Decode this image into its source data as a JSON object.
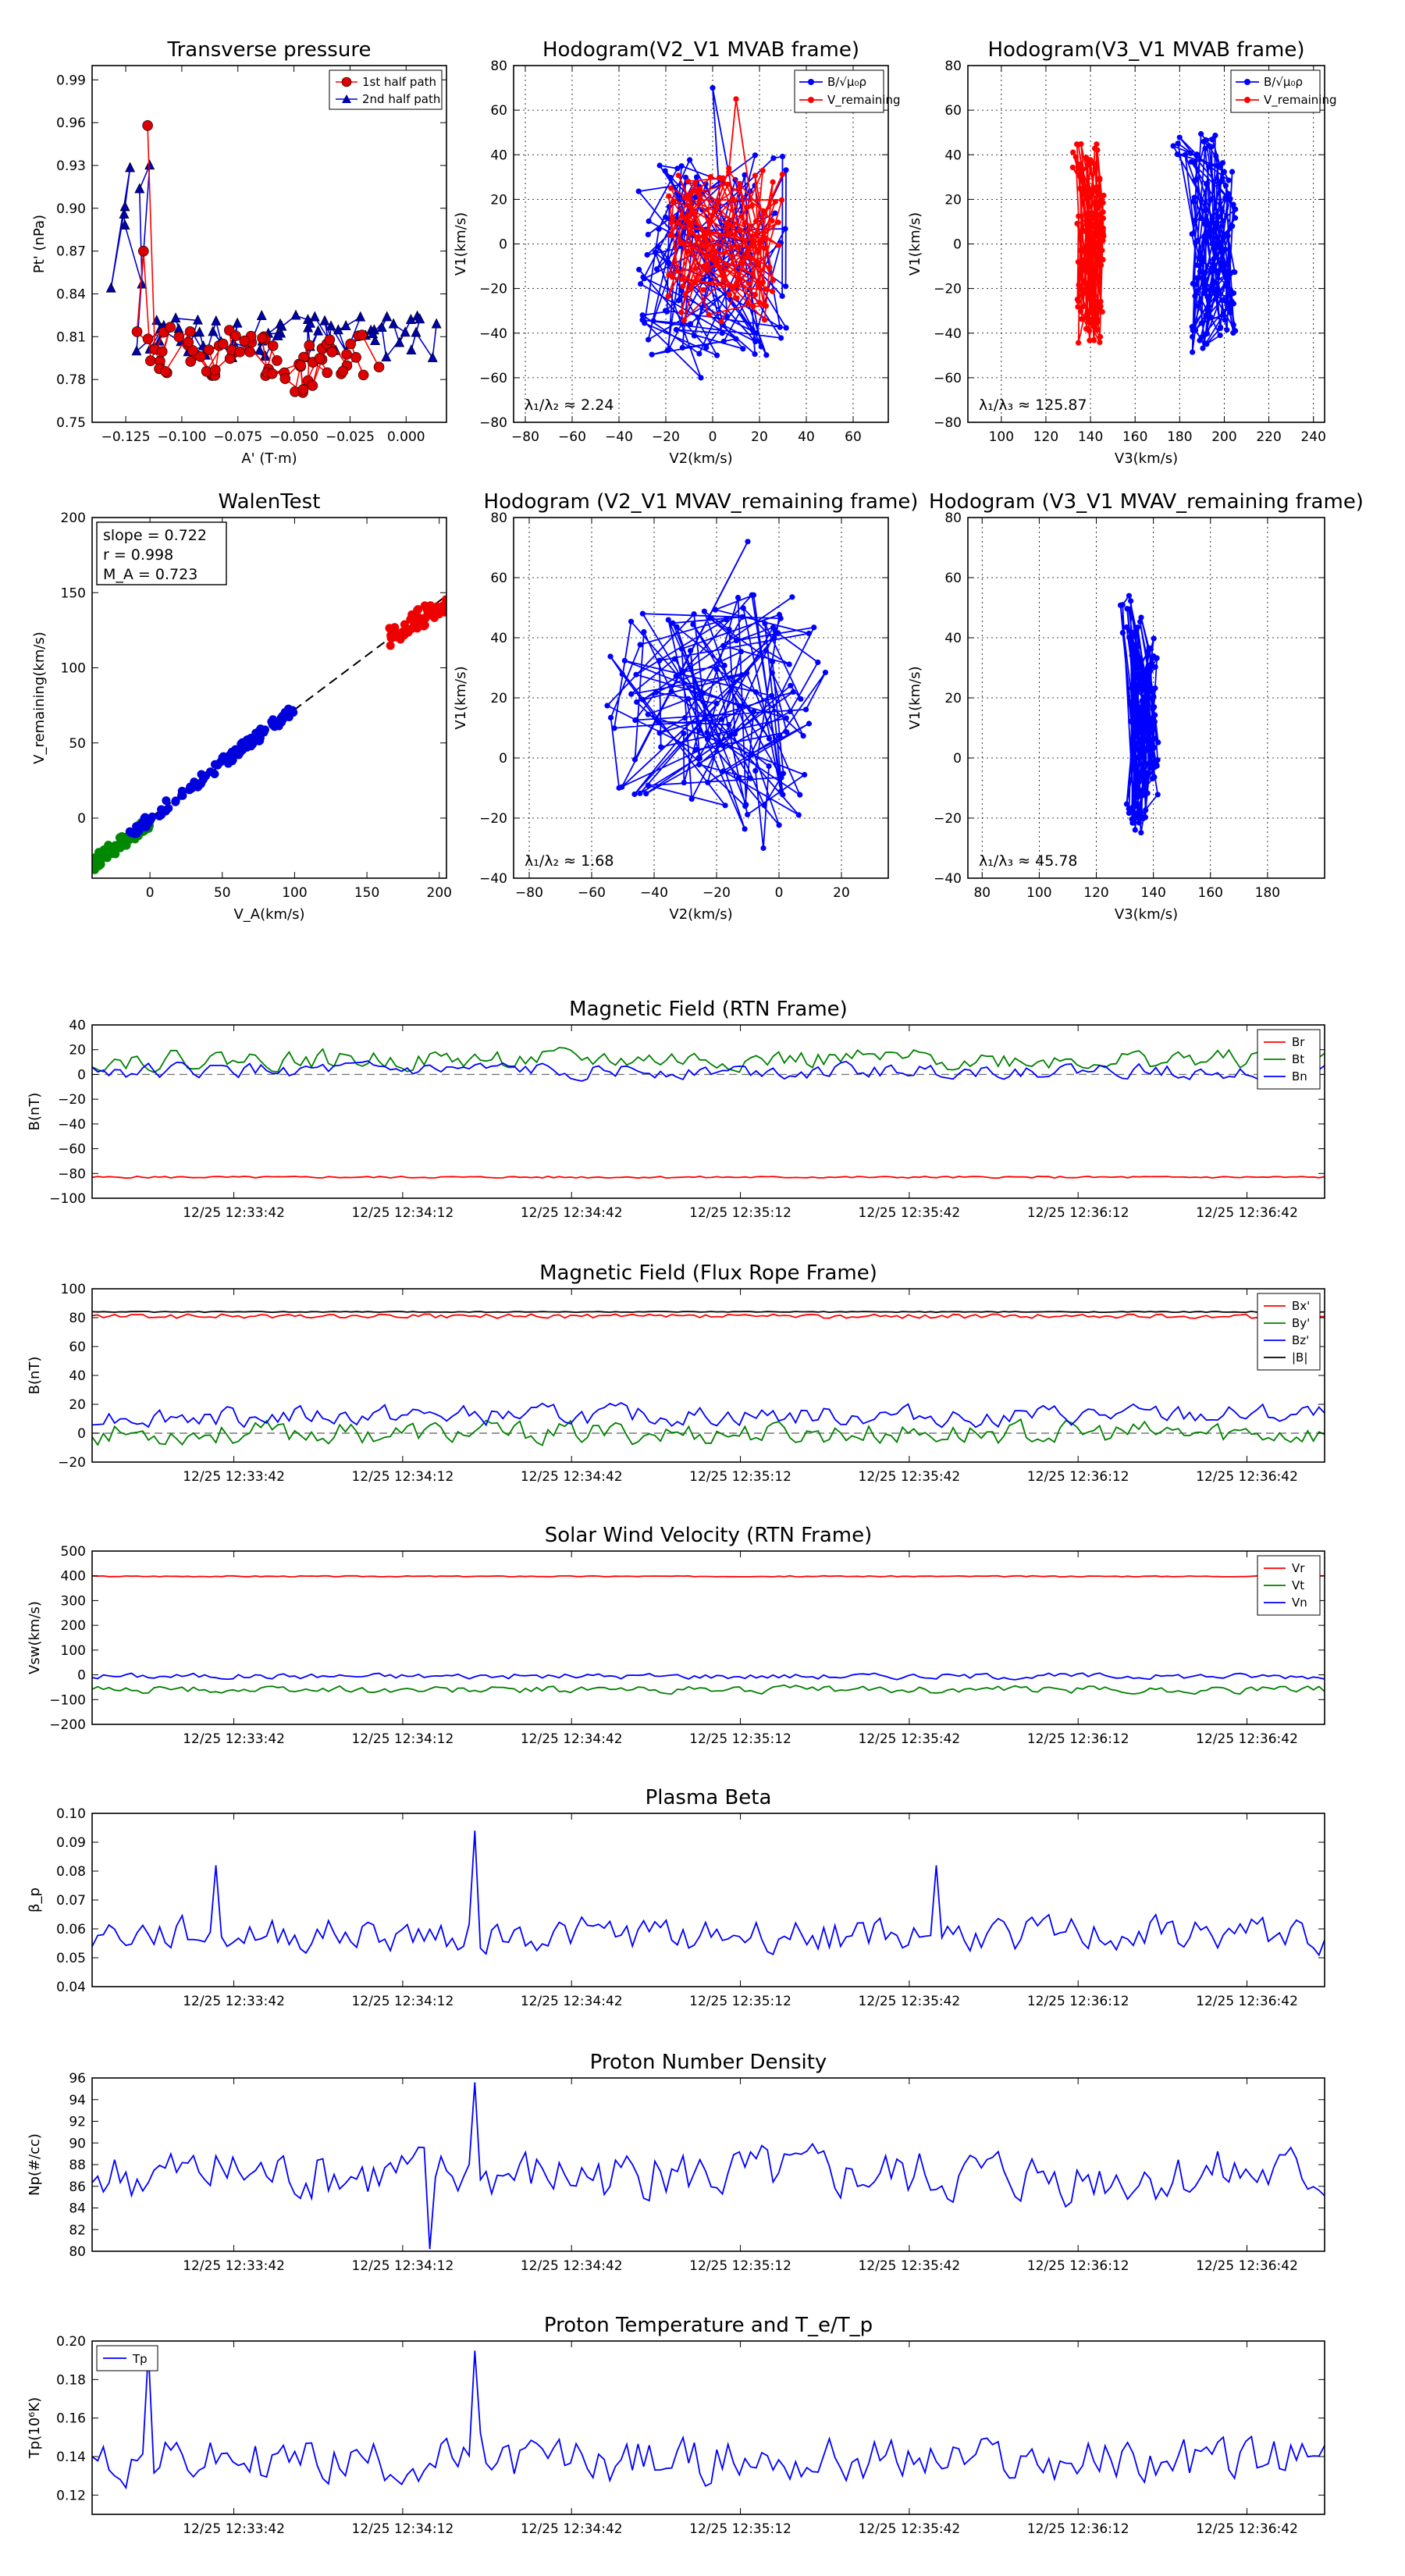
{
  "chart_data": {
    "top_panels": [
      {
        "id": "tp",
        "type": "scatter",
        "title": "Transverse pressure",
        "xlabel": "A' (T·m)",
        "ylabel": "Pt' (nPa)",
        "xlim": [
          -0.14,
          0.018
        ],
        "ylim": [
          0.75,
          1.0
        ],
        "xticks": [
          -0.125,
          -0.1,
          -0.075,
          -0.05,
          -0.025,
          0.0
        ],
        "xticklabels": [
          "−0.125",
          "−0.100",
          "−0.075",
          "−0.050",
          "−0.025",
          "0.000"
        ],
        "yticks": [
          0.75,
          0.78,
          0.81,
          0.84,
          0.87,
          0.9,
          0.93,
          0.96,
          0.99
        ],
        "yticklabels": [
          "0.75",
          "0.78",
          "0.81",
          "0.84",
          "0.87",
          "0.90",
          "0.93",
          "0.96",
          "0.99"
        ],
        "grid": false,
        "legend": [
          "1st half path",
          "2nd half path"
        ],
        "legend_loc": "top-right"
      },
      {
        "id": "h21",
        "type": "line",
        "title": "Hodogram(V2_V1 MVAB frame)",
        "xlabel": "V2(km/s)",
        "ylabel": "V1(km/s)",
        "xlim": [
          -85,
          75
        ],
        "ylim": [
          -80,
          80
        ],
        "xticks": [
          -80,
          -60,
          -40,
          -20,
          0,
          20,
          40,
          60
        ],
        "yticks": [
          -80,
          -60,
          -40,
          -20,
          0,
          20,
          40,
          60,
          80
        ],
        "grid": true,
        "legend": [
          "B/√μ₀ρ",
          "V_remaining"
        ],
        "legend_loc": "top-right",
        "annotation": "λ₁/λ₂ ≈ 2.24"
      },
      {
        "id": "h31",
        "type": "line",
        "title": "Hodogram(V3_V1 MVAB frame)",
        "xlabel": "V3(km/s)",
        "ylabel": "V1(km/s)",
        "xlim": [
          85,
          245
        ],
        "ylim": [
          -80,
          80
        ],
        "xticks": [
          100,
          120,
          140,
          160,
          180,
          200,
          220,
          240
        ],
        "yticks": [
          -80,
          -60,
          -40,
          -20,
          0,
          20,
          40,
          60,
          80
        ],
        "grid": true,
        "legend": [
          "B/√μ₀ρ",
          "V_remaining"
        ],
        "legend_loc": "top-right",
        "annotation": "λ₁/λ₃ ≈ 125.87"
      },
      {
        "id": "wt",
        "type": "scatter",
        "title": "WalenTest",
        "xlabel": "V_A(km/s)",
        "ylabel": "V_remaining(km/s)",
        "xlim": [
          -40,
          205
        ],
        "ylim": [
          -40,
          200
        ],
        "xticks": [
          0,
          50,
          100,
          150,
          200
        ],
        "yticks": [
          0,
          50,
          100,
          150,
          200
        ],
        "grid": false,
        "stats": [
          "slope = 0.722",
          "r = 0.998",
          "M_A = 0.723"
        ],
        "fit": {
          "slope": 0.722,
          "intercept": 0
        }
      },
      {
        "id": "hv21",
        "type": "line",
        "title": "Hodogram (V2_V1 MVAV_remaining frame)",
        "xlabel": "V2(km/s)",
        "ylabel": "V1(km/s)",
        "xlim": [
          -85,
          35
        ],
        "ylim": [
          -40,
          80
        ],
        "xticks": [
          -80,
          -60,
          -40,
          -20,
          0,
          20
        ],
        "yticks": [
          -40,
          -20,
          0,
          20,
          40,
          60,
          80
        ],
        "grid": true,
        "annotation": "λ₁/λ₂ ≈ 1.68"
      },
      {
        "id": "hv31",
        "type": "line",
        "title": "Hodogram (V3_V1 MVAV_remaining frame)",
        "xlabel": "V3(km/s)",
        "ylabel": "V1(km/s)",
        "xlim": [
          75,
          200
        ],
        "ylim": [
          -40,
          80
        ],
        "xticks": [
          80,
          100,
          120,
          140,
          160,
          180
        ],
        "yticks": [
          -40,
          -20,
          0,
          20,
          40,
          60,
          80
        ],
        "grid": true,
        "annotation": "λ₁/λ₃ ≈ 45.78"
      }
    ],
    "time_series": {
      "time_ticks": [
        "12/25 12:33:42",
        "12/25 12:34:12",
        "12/25 12:34:42",
        "12/25 12:35:12",
        "12/25 12:35:42",
        "12/25 12:36:12",
        "12/25 12:36:42"
      ],
      "panels": [
        {
          "id": "brtn",
          "title": "Magnetic Field (RTN Frame)",
          "ylabel": "B(nT)",
          "ylim": [
            -100,
            40
          ],
          "yticks": [
            -100,
            -80,
            -60,
            -40,
            -20,
            0,
            20,
            40
          ],
          "zero_line": true,
          "series": [
            {
              "name": "Br",
              "color": "#ff0000",
              "base": -83,
              "amp": 1.5
            },
            {
              "name": "Bt",
              "color": "#008000",
              "base": 12,
              "amp": 8
            },
            {
              "name": "Bn",
              "color": "#0000ff",
              "base": 3,
              "amp": 6
            }
          ],
          "legend_loc": "top-right"
        },
        {
          "id": "bfr",
          "title": "Magnetic Field (Flux Rope Frame)",
          "ylabel": "B(nT)",
          "ylim": [
            -20,
            100
          ],
          "yticks": [
            -20,
            0,
            20,
            40,
            60,
            80,
            100
          ],
          "zero_line": true,
          "series": [
            {
              "name": "Bx'",
              "color": "#ff0000",
              "base": 81,
              "amp": 3
            },
            {
              "name": "By'",
              "color": "#008000",
              "base": 0,
              "amp": 8
            },
            {
              "name": "Bz'",
              "color": "#0000ff",
              "base": 12,
              "amp": 7
            },
            {
              "name": "|B|",
              "color": "#000000",
              "base": 84,
              "amp": 0.6
            }
          ],
          "legend_loc": "top-right"
        },
        {
          "id": "vsw",
          "title": "Solar Wind Velocity (RTN Frame)",
          "ylabel": "Vsw(km/s)",
          "ylim": [
            -200,
            500
          ],
          "yticks": [
            -200,
            -100,
            0,
            100,
            200,
            300,
            400,
            500
          ],
          "zero_line": false,
          "series": [
            {
              "name": "Vr",
              "color": "#ff0000",
              "base": 398,
              "amp": 4
            },
            {
              "name": "Vt",
              "color": "#008000",
              "base": -60,
              "amp": 15
            },
            {
              "name": "Vn",
              "color": "#0000ff",
              "base": -5,
              "amp": 12
            }
          ],
          "legend_loc": "top-right"
        },
        {
          "id": "beta",
          "title": "Plasma Beta",
          "ylabel": "β_p",
          "ylim": [
            0.04,
            0.1
          ],
          "yticks": [
            0.04,
            0.05,
            0.06,
            0.07,
            0.08,
            0.09,
            0.1
          ],
          "yticklabels": [
            "0.04",
            "0.05",
            "0.06",
            "0.07",
            "0.08",
            "0.09",
            "0.10"
          ],
          "zero_line": false,
          "series": [
            {
              "name": "beta",
              "color": "#0000ff",
              "base": 0.058,
              "amp": 0.006
            }
          ]
        },
        {
          "id": "np",
          "title": "Proton Number Density",
          "ylabel": "Np(#/cc)",
          "ylim": [
            80,
            96
          ],
          "yticks": [
            80,
            82,
            84,
            86,
            88,
            90,
            92,
            94,
            96
          ],
          "zero_line": false,
          "series": [
            {
              "name": "Np",
              "color": "#0000ff",
              "base": 87,
              "amp": 2.5
            }
          ]
        },
        {
          "id": "tp2",
          "title": "Proton Temperature and T_e/T_p",
          "ylabel": "Tp(10⁶K)",
          "ylim": [
            0.11,
            0.2
          ],
          "yticks": [
            0.12,
            0.14,
            0.16,
            0.18,
            0.2
          ],
          "yticklabels": [
            "0.12",
            "0.14",
            "0.16",
            "0.18",
            "0.20"
          ],
          "zero_line": false,
          "series": [
            {
              "name": "Tp",
              "color": "#0000ff",
              "base": 0.138,
              "amp": 0.012
            }
          ],
          "legend_loc": "top-left"
        }
      ]
    }
  }
}
